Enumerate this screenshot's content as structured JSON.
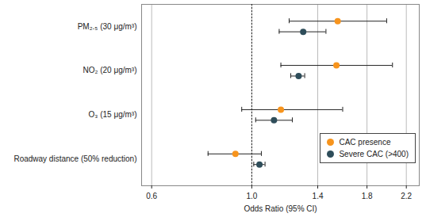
{
  "chart_data": {
    "type": "forest",
    "categories": [
      "PM₂.₅ (30 μg/m³)",
      "NO₂ (20 μg/m³)",
      "O₃ (15 μg/m³)",
      "Roadway distance (50% reduction)"
    ],
    "x_label": "Odds Ratio (95% CI)",
    "xlim": [
      0.57,
      2.35
    ],
    "xticks": [
      0.6,
      {
        "value": 1,
        "label": "1.0"
      },
      1.4,
      1.8,
      2.2
    ],
    "log": "x",
    "grid": true,
    "reference_line": 1,
    "legend": "bottom-right",
    "series": [
      {
        "name": "CAC presence",
        "color": "#f7941d",
        "marker": "circle",
        "values": [
          1.55,
          1.54,
          1.16,
          0.92
        ],
        "ci_lower": [
          1.21,
          1.16,
          0.95,
          0.8
        ],
        "ci_upper": [
          1.99,
          2.05,
          1.59,
          1.05
        ]
      },
      {
        "name": "Severe CAC (>400)",
        "color": "#2e4d5a",
        "marker": "circle",
        "values": [
          1.3,
          1.27,
          1.12,
          1.04
        ],
        "ci_lower": [
          1.15,
          1.22,
          1.02,
          1.01
        ],
        "ci_upper": [
          1.46,
          1.31,
          1.23,
          1.07
        ]
      }
    ]
  }
}
